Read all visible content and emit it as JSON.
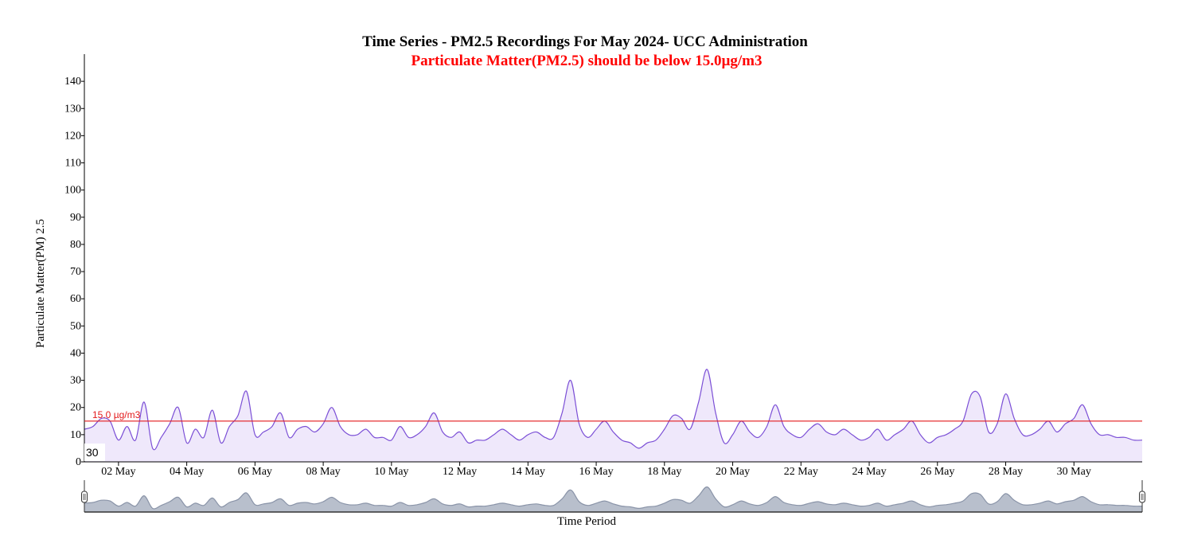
{
  "chart_data": {
    "type": "area",
    "title": "Time Series - PM2.5 Recordings For May 2024- UCC Administration",
    "subtitle": "Particulate Matter(PM2.5) should be below 15.0µg/m3",
    "xlabel": "Time Period",
    "ylabel": "Particulate Matter(PM) 2.5",
    "ylim": [
      0,
      150
    ],
    "xlim": [
      "2024-05-01",
      "2024-06-01"
    ],
    "y_ticks": [
      0,
      10,
      20,
      30,
      40,
      50,
      60,
      70,
      80,
      90,
      100,
      110,
      120,
      130,
      140
    ],
    "x_ticks": [
      {
        "date": "2024-05-02",
        "label": "02 May"
      },
      {
        "date": "2024-05-04",
        "label": "04 May"
      },
      {
        "date": "2024-05-06",
        "label": "06 May"
      },
      {
        "date": "2024-05-08",
        "label": "08 May"
      },
      {
        "date": "2024-05-10",
        "label": "10 May"
      },
      {
        "date": "2024-05-12",
        "label": "12 May"
      },
      {
        "date": "2024-05-14",
        "label": "14 May"
      },
      {
        "date": "2024-05-16",
        "label": "16 May"
      },
      {
        "date": "2024-05-18",
        "label": "18 May"
      },
      {
        "date": "2024-05-20",
        "label": "20 May"
      },
      {
        "date": "2024-05-22",
        "label": "22 May"
      },
      {
        "date": "2024-05-24",
        "label": "24 May"
      },
      {
        "date": "2024-05-26",
        "label": "26 May"
      },
      {
        "date": "2024-05-28",
        "label": "28 May"
      },
      {
        "date": "2024-05-30",
        "label": "30 May"
      }
    ],
    "threshold": {
      "value": 15.0,
      "label": "15.0 µg/m3",
      "color": "#e31a1c"
    },
    "badge": "30",
    "grid": false,
    "series": [
      {
        "line_color": "#7b4fd6",
        "fill_color": "#efe8fb",
        "brush_line_color": "#8a94a8",
        "brush_fill_color": "#b8bfcc",
        "points": [
          [
            "2024-05-01T00:00",
            12
          ],
          [
            "2024-05-01T06:00",
            13
          ],
          [
            "2024-05-01T12:00",
            16
          ],
          [
            "2024-05-01T18:00",
            15
          ],
          [
            "2024-05-02T00:00",
            8
          ],
          [
            "2024-05-02T06:00",
            13
          ],
          [
            "2024-05-02T12:00",
            8
          ],
          [
            "2024-05-02T18:00",
            22
          ],
          [
            "2024-05-03T00:00",
            5
          ],
          [
            "2024-05-03T06:00",
            9
          ],
          [
            "2024-05-03T12:00",
            14
          ],
          [
            "2024-05-03T18:00",
            20
          ],
          [
            "2024-05-04T00:00",
            7
          ],
          [
            "2024-05-04T06:00",
            12
          ],
          [
            "2024-05-04T12:00",
            9
          ],
          [
            "2024-05-04T18:00",
            19
          ],
          [
            "2024-05-05T00:00",
            7
          ],
          [
            "2024-05-05T06:00",
            13
          ],
          [
            "2024-05-05T12:00",
            17
          ],
          [
            "2024-05-05T18:00",
            26
          ],
          [
            "2024-05-06T00:00",
            10
          ],
          [
            "2024-05-06T06:00",
            11
          ],
          [
            "2024-05-06T12:00",
            13
          ],
          [
            "2024-05-06T18:00",
            18
          ],
          [
            "2024-05-07T00:00",
            9
          ],
          [
            "2024-05-07T06:00",
            12
          ],
          [
            "2024-05-07T12:00",
            13
          ],
          [
            "2024-05-07T18:00",
            11
          ],
          [
            "2024-05-08T00:00",
            14
          ],
          [
            "2024-05-08T06:00",
            20
          ],
          [
            "2024-05-08T12:00",
            13
          ],
          [
            "2024-05-08T18:00",
            10
          ],
          [
            "2024-05-09T00:00",
            10
          ],
          [
            "2024-05-09T06:00",
            12
          ],
          [
            "2024-05-09T12:00",
            9
          ],
          [
            "2024-05-09T18:00",
            9
          ],
          [
            "2024-05-10T00:00",
            8
          ],
          [
            "2024-05-10T06:00",
            13
          ],
          [
            "2024-05-10T12:00",
            9
          ],
          [
            "2024-05-10T18:00",
            10
          ],
          [
            "2024-05-11T00:00",
            13
          ],
          [
            "2024-05-11T06:00",
            18
          ],
          [
            "2024-05-11T12:00",
            11
          ],
          [
            "2024-05-11T18:00",
            9
          ],
          [
            "2024-05-12T00:00",
            11
          ],
          [
            "2024-05-12T06:00",
            7
          ],
          [
            "2024-05-12T12:00",
            8
          ],
          [
            "2024-05-12T18:00",
            8
          ],
          [
            "2024-05-13T00:00",
            10
          ],
          [
            "2024-05-13T06:00",
            12
          ],
          [
            "2024-05-13T12:00",
            10
          ],
          [
            "2024-05-13T18:00",
            8
          ],
          [
            "2024-05-14T00:00",
            10
          ],
          [
            "2024-05-14T06:00",
            11
          ],
          [
            "2024-05-14T12:00",
            9
          ],
          [
            "2024-05-14T18:00",
            9
          ],
          [
            "2024-05-15T00:00",
            18
          ],
          [
            "2024-05-15T06:00",
            30
          ],
          [
            "2024-05-15T12:00",
            14
          ],
          [
            "2024-05-15T18:00",
            9
          ],
          [
            "2024-05-16T00:00",
            12
          ],
          [
            "2024-05-16T06:00",
            15
          ],
          [
            "2024-05-16T12:00",
            11
          ],
          [
            "2024-05-16T18:00",
            8
          ],
          [
            "2024-05-17T00:00",
            7
          ],
          [
            "2024-05-17T06:00",
            5
          ],
          [
            "2024-05-17T12:00",
            7
          ],
          [
            "2024-05-17T18:00",
            8
          ],
          [
            "2024-05-18T00:00",
            12
          ],
          [
            "2024-05-18T06:00",
            17
          ],
          [
            "2024-05-18T12:00",
            16
          ],
          [
            "2024-05-18T18:00",
            12
          ],
          [
            "2024-05-19T00:00",
            22
          ],
          [
            "2024-05-19T06:00",
            34
          ],
          [
            "2024-05-19T12:00",
            18
          ],
          [
            "2024-05-19T18:00",
            7
          ],
          [
            "2024-05-20T00:00",
            10
          ],
          [
            "2024-05-20T06:00",
            15
          ],
          [
            "2024-05-20T12:00",
            11
          ],
          [
            "2024-05-20T18:00",
            9
          ],
          [
            "2024-05-21T00:00",
            13
          ],
          [
            "2024-05-21T06:00",
            21
          ],
          [
            "2024-05-21T12:00",
            13
          ],
          [
            "2024-05-21T18:00",
            10
          ],
          [
            "2024-05-22T00:00",
            9
          ],
          [
            "2024-05-22T06:00",
            12
          ],
          [
            "2024-05-22T12:00",
            14
          ],
          [
            "2024-05-22T18:00",
            11
          ],
          [
            "2024-05-23T00:00",
            10
          ],
          [
            "2024-05-23T06:00",
            12
          ],
          [
            "2024-05-23T12:00",
            10
          ],
          [
            "2024-05-23T18:00",
            8
          ],
          [
            "2024-05-24T00:00",
            9
          ],
          [
            "2024-05-24T06:00",
            12
          ],
          [
            "2024-05-24T12:00",
            8
          ],
          [
            "2024-05-24T18:00",
            10
          ],
          [
            "2024-05-25T00:00",
            12
          ],
          [
            "2024-05-25T06:00",
            15
          ],
          [
            "2024-05-25T12:00",
            10
          ],
          [
            "2024-05-25T18:00",
            7
          ],
          [
            "2024-05-26T00:00",
            9
          ],
          [
            "2024-05-26T06:00",
            10
          ],
          [
            "2024-05-26T12:00",
            12
          ],
          [
            "2024-05-26T18:00",
            15
          ],
          [
            "2024-05-27T00:00",
            25
          ],
          [
            "2024-05-27T06:00",
            24
          ],
          [
            "2024-05-27T12:00",
            11
          ],
          [
            "2024-05-27T18:00",
            14
          ],
          [
            "2024-05-28T00:00",
            25
          ],
          [
            "2024-05-28T06:00",
            16
          ],
          [
            "2024-05-28T12:00",
            10
          ],
          [
            "2024-05-28T18:00",
            10
          ],
          [
            "2024-05-29T00:00",
            12
          ],
          [
            "2024-05-29T06:00",
            15
          ],
          [
            "2024-05-29T12:00",
            11
          ],
          [
            "2024-05-29T18:00",
            14
          ],
          [
            "2024-05-30T00:00",
            16
          ],
          [
            "2024-05-30T06:00",
            21
          ],
          [
            "2024-05-30T12:00",
            14
          ],
          [
            "2024-05-30T18:00",
            10
          ],
          [
            "2024-05-31T00:00",
            10
          ],
          [
            "2024-05-31T06:00",
            9
          ],
          [
            "2024-05-31T12:00",
            9
          ],
          [
            "2024-05-31T18:00",
            8
          ],
          [
            "2024-06-01T00:00",
            8
          ]
        ]
      }
    ]
  }
}
